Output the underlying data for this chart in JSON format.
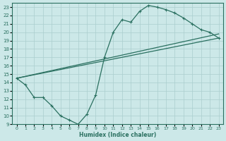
{
  "xlabel": "Humidex (Indice chaleur)",
  "bg_color": "#cce8e8",
  "grid_color": "#aacece",
  "line_color": "#2a7060",
  "xlim": [
    -0.5,
    23.5
  ],
  "ylim": [
    9,
    23.5
  ],
  "yticks": [
    9,
    10,
    11,
    12,
    13,
    14,
    15,
    16,
    17,
    18,
    19,
    20,
    21,
    22,
    23
  ],
  "xticks": [
    0,
    1,
    2,
    3,
    4,
    5,
    6,
    7,
    8,
    9,
    10,
    11,
    12,
    13,
    14,
    15,
    16,
    17,
    18,
    19,
    20,
    21,
    22,
    23
  ],
  "line1_x": [
    0,
    1,
    2,
    3,
    4,
    5,
    6,
    7,
    8,
    9,
    10,
    11,
    12,
    13,
    14,
    15,
    16,
    17,
    18,
    19,
    20,
    21,
    22,
    23
  ],
  "line1_y": [
    14.5,
    13.7,
    12.2,
    12.2,
    11.2,
    10.0,
    9.5,
    9.0,
    10.2,
    12.5,
    17.0,
    20.0,
    21.5,
    21.2,
    22.5,
    23.2,
    23.0,
    22.7,
    22.3,
    21.7,
    21.0,
    20.3,
    20.0,
    19.3
  ],
  "line2_x": [
    0,
    23
  ],
  "line2_y": [
    14.5,
    19.3
  ],
  "line3_x": [
    0,
    23
  ],
  "line3_y": [
    14.5,
    19.3
  ]
}
